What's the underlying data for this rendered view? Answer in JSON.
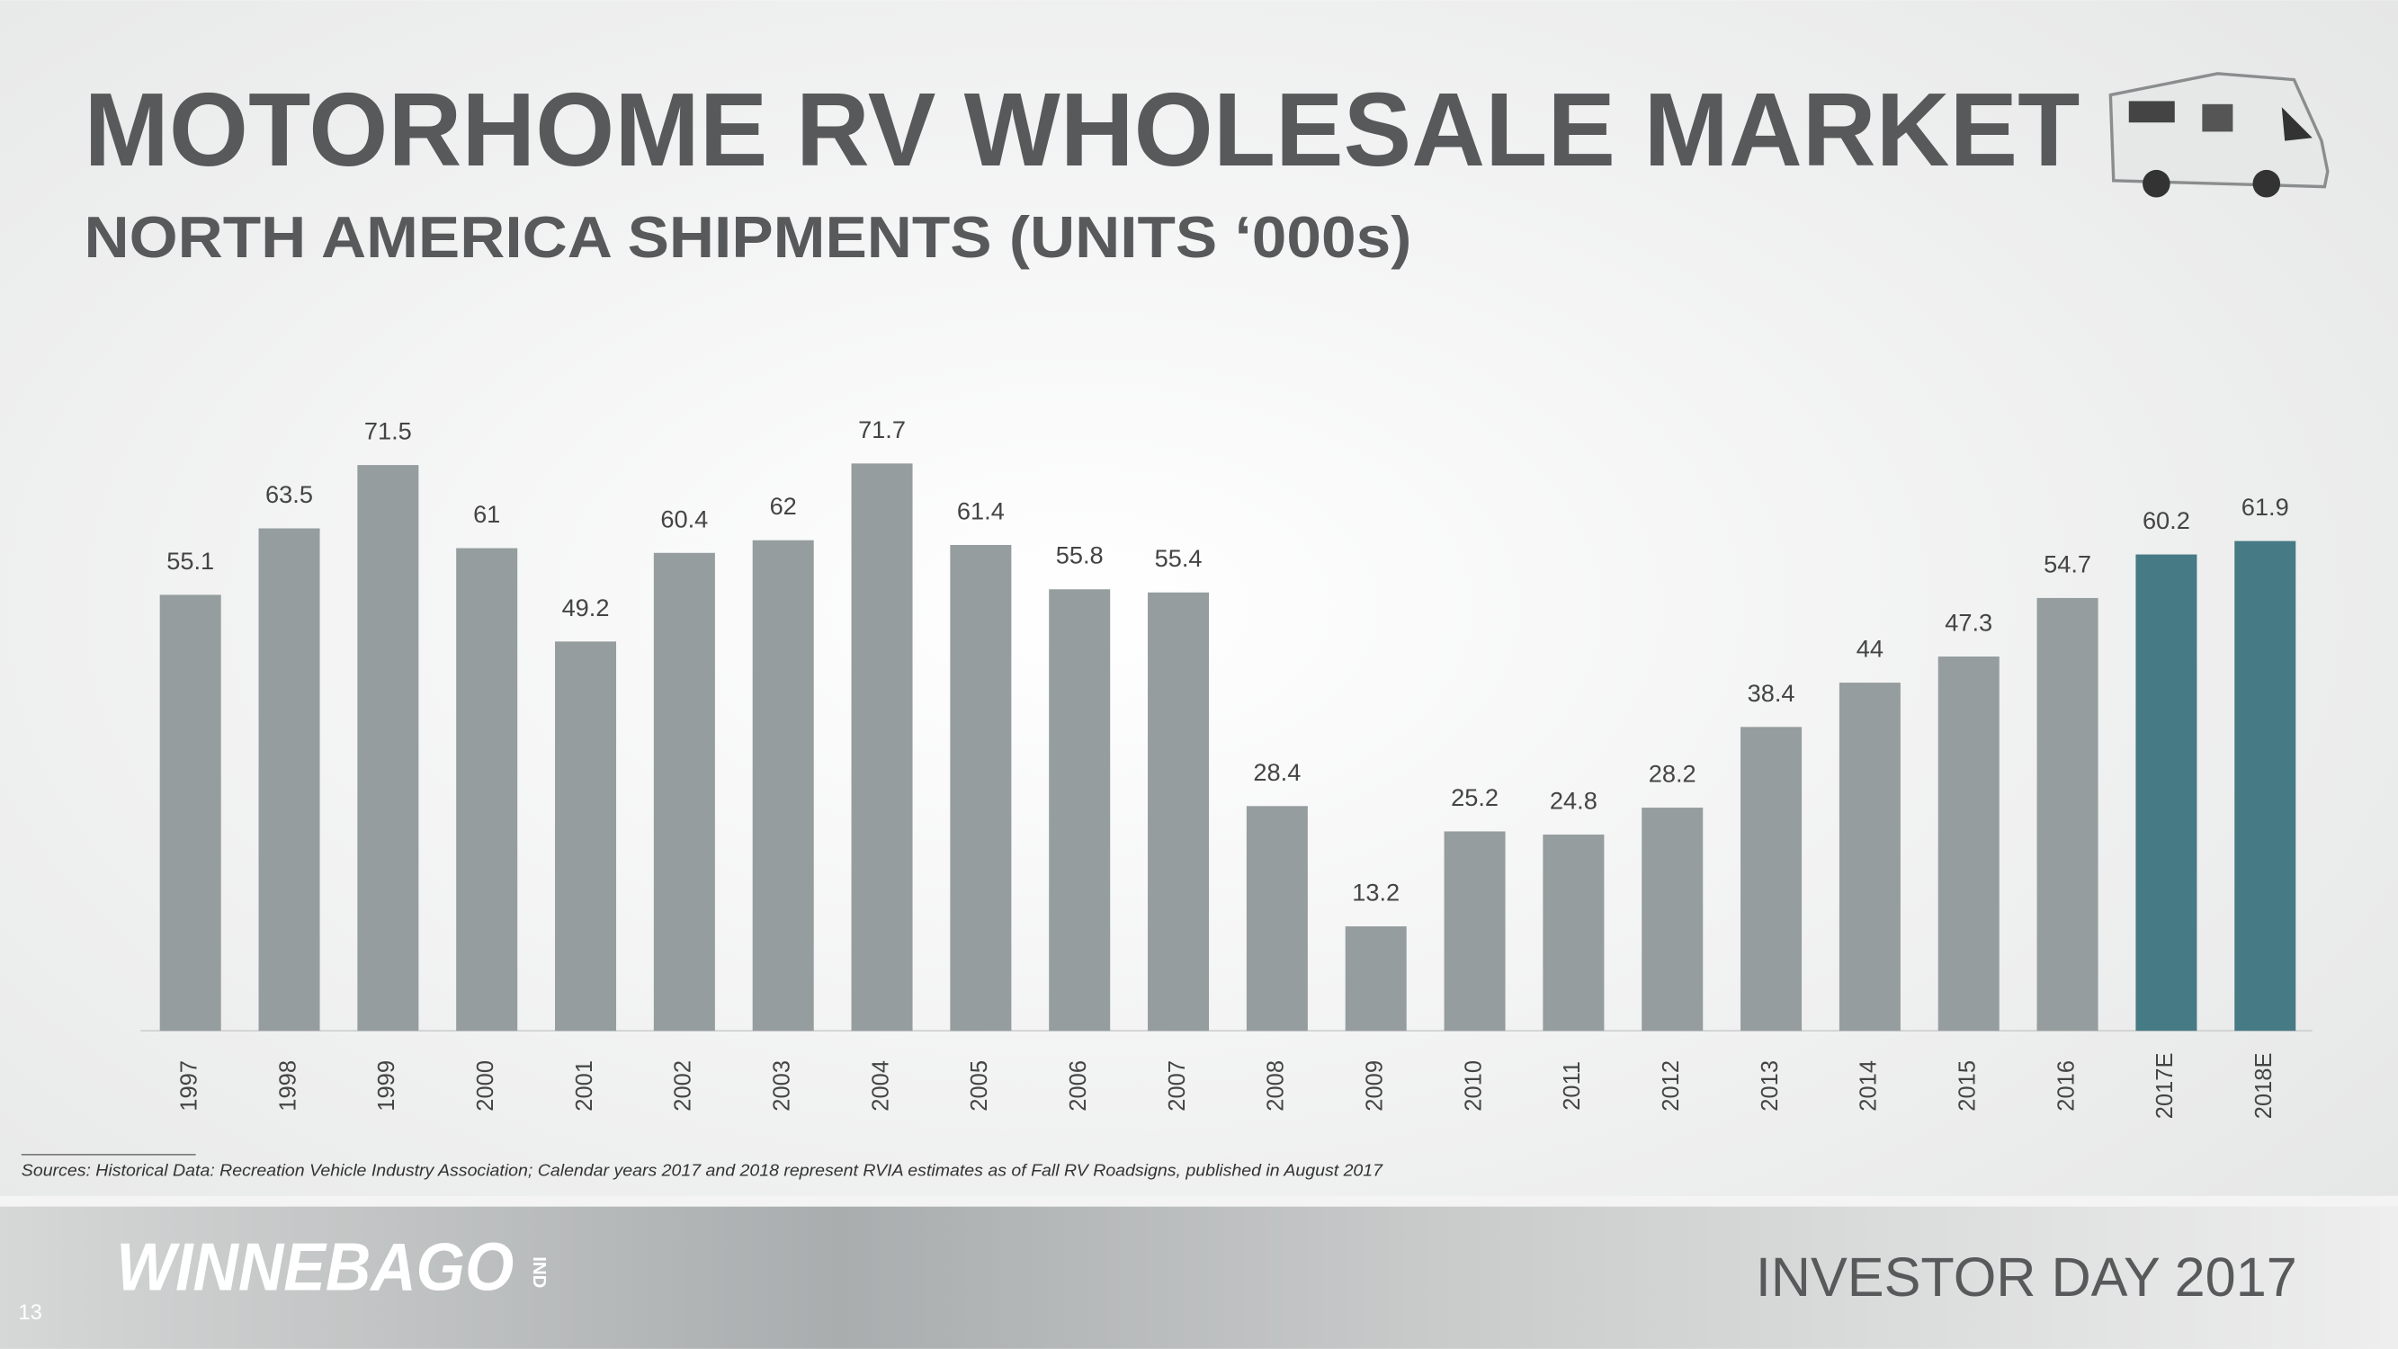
{
  "header": {
    "title": "MOTORHOME RV WHOLESALE MARKET",
    "subtitle": "NORTH AMERICA SHIPMENTS (UNITS ‘000s)"
  },
  "chart_data": {
    "type": "bar",
    "categories": [
      "1997",
      "1998",
      "1999",
      "2000",
      "2001",
      "2002",
      "2003",
      "2004",
      "2005",
      "2006",
      "2007",
      "2008",
      "2009",
      "2010",
      "2011",
      "2012",
      "2013",
      "2014",
      "2015",
      "2016",
      "2017E",
      "2018E"
    ],
    "values": [
      55.1,
      63.5,
      71.5,
      61,
      49.2,
      60.4,
      62,
      71.7,
      61.4,
      55.8,
      55.4,
      28.4,
      13.2,
      25.2,
      24.8,
      28.2,
      38.4,
      44,
      47.3,
      54.7,
      60.2,
      61.9
    ],
    "colors": [
      "#969d9e",
      "#969d9e",
      "#969d9e",
      "#969d9e",
      "#969d9e",
      "#969d9e",
      "#969d9e",
      "#969d9e",
      "#969d9e",
      "#969d9e",
      "#969d9e",
      "#969d9e",
      "#969d9e",
      "#969d9e",
      "#969d9e",
      "#969d9e",
      "#969d9e",
      "#969d9e",
      "#969d9e",
      "#969d9e",
      "#467a85",
      "#467a85"
    ]
  },
  "footnote": "Sources: Historical Data: Recreation Vehicle Industry Association; Calendar years 2017 and 2018 represent RVIA estimates as of Fall RV Roadsigns, published in August 2017",
  "footer": {
    "logo": "WINNEBAGO",
    "logo_suffix": "IND",
    "event": "INVESTOR DAY 2017",
    "page_number": "13"
  }
}
